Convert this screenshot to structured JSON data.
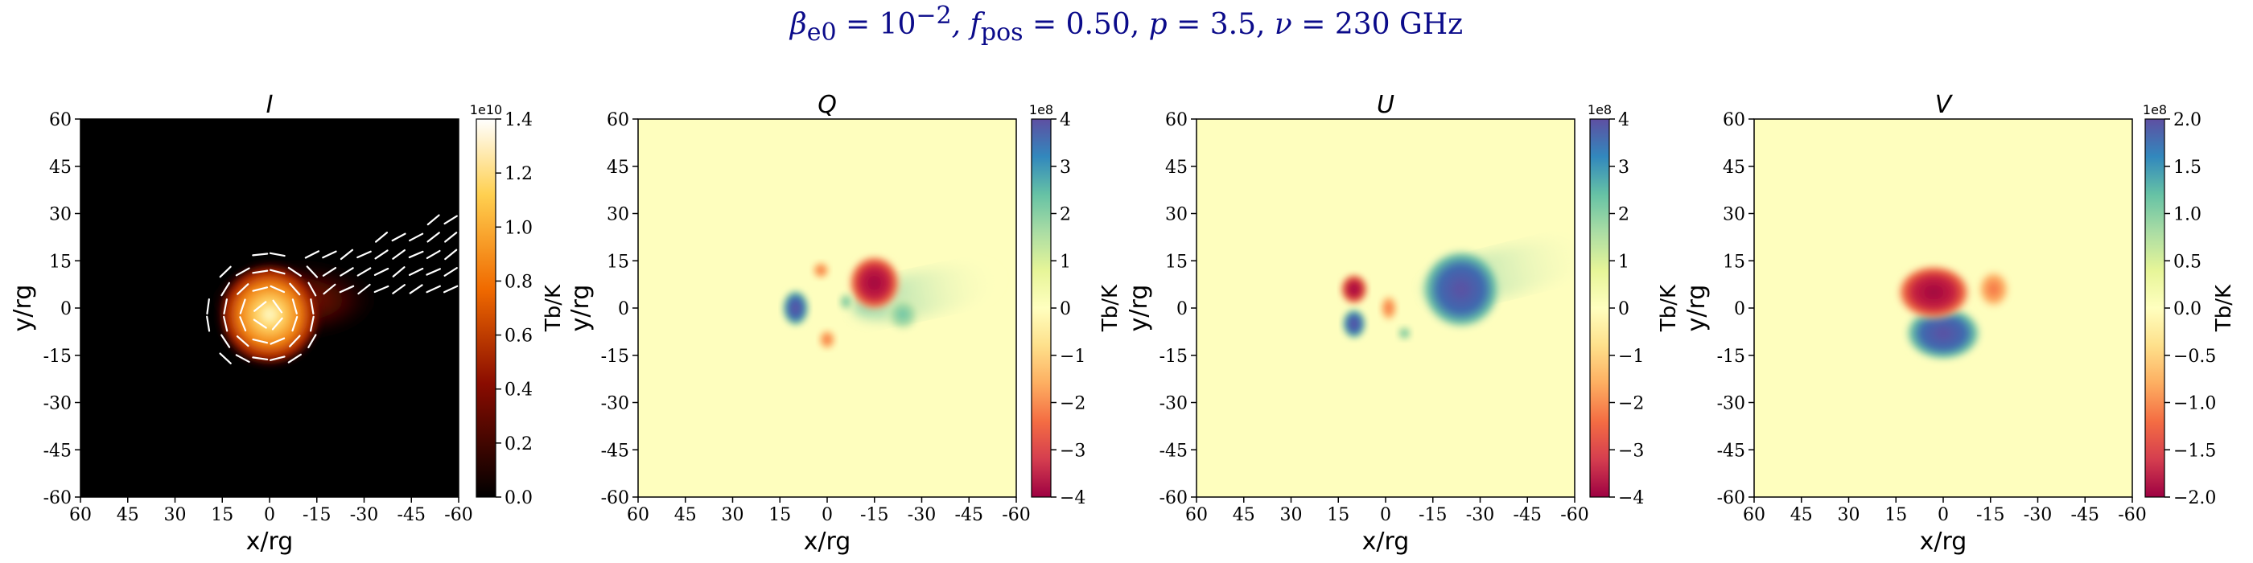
{
  "suptitle": {
    "beta_label": "β",
    "beta_sub": "e0",
    "beta_value": " = 10",
    "beta_exp": "−2",
    "fpos_label": ", f",
    "fpos_sub": "pos",
    "fpos_value": " = 0.50, ",
    "p_label": "p",
    "p_value": " = 3.5, ",
    "nu_label": "ν",
    "nu_value": " = 230 GHz"
  },
  "chart_data": [
    {
      "type": "heatmap",
      "title": "I",
      "xlabel": "x/rg",
      "ylabel": "y/rg",
      "xlim": [
        60,
        -60
      ],
      "ylim": [
        -60,
        60
      ],
      "xticks": [
        "60",
        "45",
        "30",
        "15",
        "0",
        "-15",
        "-30",
        "-45",
        "-60"
      ],
      "yticks": [
        "60",
        "45",
        "30",
        "15",
        "0",
        "-15",
        "-30",
        "-45",
        "-60"
      ],
      "colormap": "afmhot",
      "colorbar": {
        "label": "Tb/K",
        "offset": "1e10",
        "range": [
          0.0,
          1.4
        ],
        "ticks": [
          "0.0",
          "0.2",
          "0.4",
          "0.6",
          "0.8",
          "1.0",
          "1.2",
          "1.4"
        ]
      },
      "overlay": "polarization-ticks"
    },
    {
      "type": "heatmap",
      "title": "Q",
      "xlabel": "x/rg",
      "ylabel": "y/rg",
      "xlim": [
        60,
        -60
      ],
      "ylim": [
        -60,
        60
      ],
      "xticks": [
        "60",
        "45",
        "30",
        "15",
        "0",
        "-15",
        "-30",
        "-45",
        "-60"
      ],
      "yticks": [
        "60",
        "45",
        "30",
        "15",
        "0",
        "-15",
        "-30",
        "-45",
        "-60"
      ],
      "colormap": "Spectral",
      "colorbar": {
        "label": "Tb/K",
        "offset": "1e8",
        "range": [
          -4,
          4
        ],
        "ticks": [
          "−4",
          "−3",
          "−2",
          "−1",
          "0",
          "1",
          "2",
          "3",
          "4"
        ]
      }
    },
    {
      "type": "heatmap",
      "title": "U",
      "xlabel": "x/rg",
      "ylabel": "y/rg",
      "xlim": [
        60,
        -60
      ],
      "ylim": [
        -60,
        60
      ],
      "xticks": [
        "60",
        "45",
        "30",
        "15",
        "0",
        "-15",
        "-30",
        "-45",
        "-60"
      ],
      "yticks": [
        "60",
        "45",
        "30",
        "15",
        "0",
        "-15",
        "-30",
        "-45",
        "-60"
      ],
      "colormap": "Spectral",
      "colorbar": {
        "label": "Tb/K",
        "offset": "1e8",
        "range": [
          -4,
          4
        ],
        "ticks": [
          "−4",
          "−3",
          "−2",
          "−1",
          "0",
          "1",
          "2",
          "3",
          "4"
        ]
      }
    },
    {
      "type": "heatmap",
      "title": "V",
      "xlabel": "x/rg",
      "ylabel": "y/rg",
      "xlim": [
        60,
        -60
      ],
      "ylim": [
        -60,
        60
      ],
      "xticks": [
        "60",
        "45",
        "30",
        "15",
        "0",
        "-15",
        "-30",
        "-45",
        "-60"
      ],
      "yticks": [
        "60",
        "45",
        "30",
        "15",
        "0",
        "-15",
        "-30",
        "-45",
        "-60"
      ],
      "colormap": "Spectral",
      "colorbar": {
        "label": "Tb/K",
        "offset": "1e8",
        "range": [
          -2.0,
          2.0
        ],
        "ticks": [
          "−2.0",
          "−1.5",
          "−1.0",
          "−0.5",
          "0.0",
          "0.5",
          "1.0",
          "1.5",
          "2.0"
        ]
      }
    }
  ]
}
